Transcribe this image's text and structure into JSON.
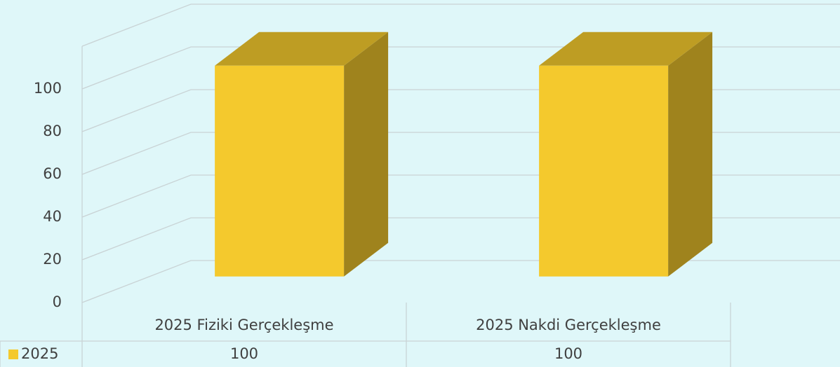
{
  "chart_data": {
    "type": "bar3d",
    "categories": [
      "2025 Fiziki Gerçekleşme",
      "2025 Nakdi Gerçekleşme"
    ],
    "series": [
      {
        "name": "2025",
        "color": "#f4c92d",
        "values": [
          100,
          100
        ]
      }
    ],
    "ylim": [
      0,
      120
    ],
    "yticks": [
      0,
      20,
      40,
      60,
      80,
      100
    ],
    "grid": true
  }
}
